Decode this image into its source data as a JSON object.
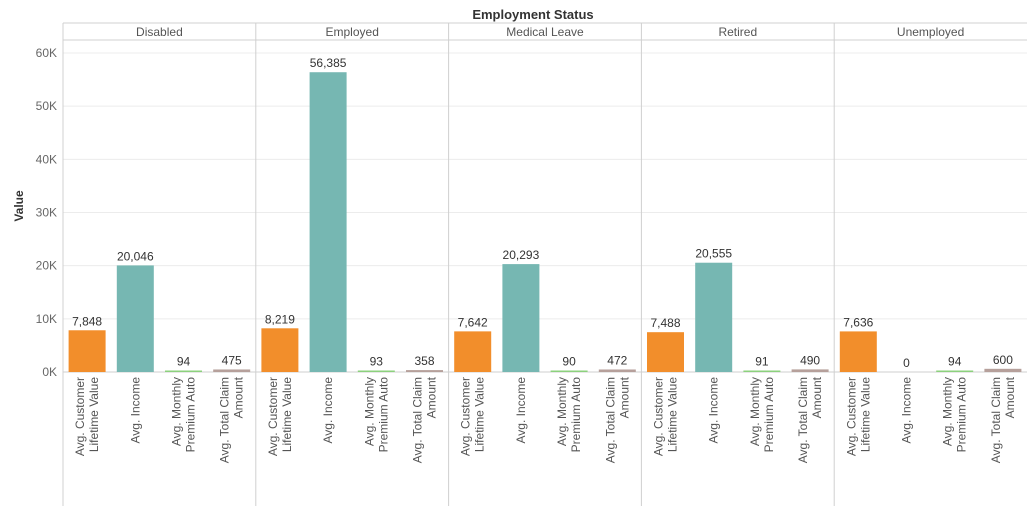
{
  "chart_data": {
    "type": "bar",
    "title": "Employment Status",
    "ylabel": "Value",
    "xlabel": "",
    "ylim": [
      0,
      60000
    ],
    "yticks": [
      0,
      10000,
      20000,
      30000,
      40000,
      50000,
      60000
    ],
    "ytick_labels": [
      "0K",
      "10K",
      "20K",
      "30K",
      "40K",
      "50K",
      "60K"
    ],
    "grid": true,
    "legend": "none",
    "measures": [
      {
        "lines": [
          "Avg. Customer",
          "Lifetime Value"
        ],
        "color": "#f28e2b"
      },
      {
        "lines": [
          "Avg. Income"
        ],
        "color": "#76b7b2"
      },
      {
        "lines": [
          "Avg. Monthly",
          "Premium Auto"
        ],
        "color": "#8cd17d"
      },
      {
        "lines": [
          "Avg. Total Claim",
          "Amount"
        ],
        "color": "#b6a09b"
      }
    ],
    "panels": [
      {
        "name": "Disabled",
        "values": [
          7848,
          20046,
          94,
          475
        ],
        "labels": [
          "7,848",
          "20,046",
          "94",
          "475"
        ]
      },
      {
        "name": "Employed",
        "values": [
          8219,
          56385,
          93,
          358
        ],
        "labels": [
          "8,219",
          "56,385",
          "93",
          "358"
        ]
      },
      {
        "name": "Medical Leave",
        "values": [
          7642,
          20293,
          90,
          472
        ],
        "labels": [
          "7,642",
          "20,293",
          "90",
          "472"
        ]
      },
      {
        "name": "Retired",
        "values": [
          7488,
          20555,
          91,
          490
        ],
        "labels": [
          "7,488",
          "20,555",
          "91",
          "490"
        ]
      },
      {
        "name": "Unemployed",
        "values": [
          7636,
          0,
          94,
          600
        ],
        "labels": [
          "7,636",
          "0",
          "94",
          "600"
        ]
      }
    ]
  }
}
